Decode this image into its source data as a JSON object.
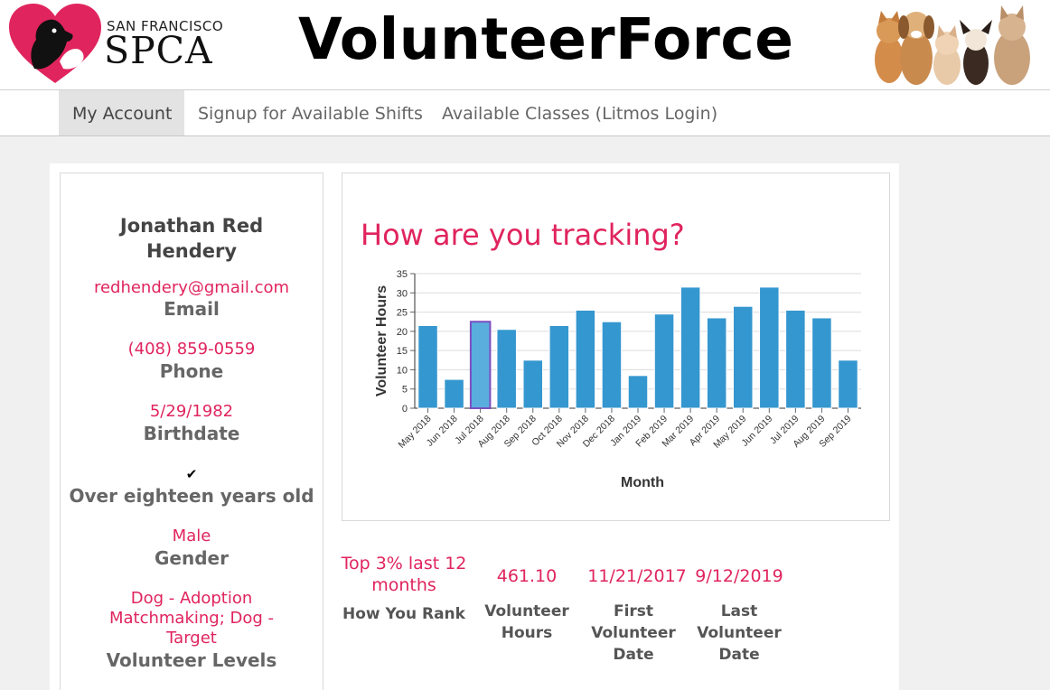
{
  "header": {
    "logo_small": "SAN FRANCISCO",
    "logo_big": "SPCA",
    "title": "VolunteerForce"
  },
  "nav": {
    "items": [
      {
        "label": "My Account",
        "active": true
      },
      {
        "label": "Signup for Available Shifts",
        "active": false
      },
      {
        "label": "Available Classes (Litmos Login)",
        "active": false
      }
    ]
  },
  "profile": {
    "name_line1": "Jonathan Red",
    "name_line2": "Hendery",
    "email": "redhendery@gmail.com",
    "email_label": "Email",
    "phone": "(408) 859-0559",
    "phone_label": "Phone",
    "birthdate": "5/29/1982",
    "birthdate_label": "Birthdate",
    "over18_check": "✔",
    "over18_label": "Over eighteen years old",
    "gender": "Male",
    "gender_label": "Gender",
    "levels_line1": "Dog - Adoption",
    "levels_line2": "Matchmaking; Dog -",
    "levels_line3": "Target",
    "levels_label": "Volunteer Levels"
  },
  "chart": {
    "heading": "How are you tracking?"
  },
  "chart_data": {
    "type": "bar",
    "categories": [
      "May 2018",
      "Jun 2018",
      "Jul 2018",
      "Aug 2018",
      "Sep 2018",
      "Oct 2018",
      "Nov 2018",
      "Dec 2018",
      "Jan 2019",
      "Feb 2019",
      "Mar 2019",
      "Apr 2019",
      "May 2019",
      "Jun 2019",
      "Jul 2019",
      "Aug 2019",
      "Sep 2019"
    ],
    "values": [
      21.5,
      7.5,
      22.5,
      20.5,
      12.5,
      21.5,
      25.5,
      22.5,
      8.5,
      24.5,
      31.5,
      23.5,
      26.5,
      31.5,
      25.5,
      23.5,
      12.5
    ],
    "highlighted_category": "Jul 2018",
    "xlabel": "Month",
    "ylabel": "Volunteer Hours",
    "ylim": [
      0,
      35
    ],
    "yticks": [
      0,
      5,
      10,
      15,
      20,
      25,
      30,
      35
    ],
    "grid": true,
    "bar_color": "#3597cf",
    "highlight_color": "#5aaedd",
    "highlight_border": "#7b4fc0"
  },
  "stats": [
    {
      "value_line1": "Top 3% last 12",
      "value_line2": "months",
      "label_line1": "How You Rank",
      "label_line2": "",
      "label_line3": ""
    },
    {
      "value_line1": "461.10",
      "value_line2": "",
      "label_line1": "Volunteer",
      "label_line2": "Hours",
      "label_line3": ""
    },
    {
      "value_line1": "11/21/2017",
      "value_line2": "",
      "label_line1": "First",
      "label_line2": "Volunteer",
      "label_line3": "Date"
    },
    {
      "value_line1": "9/12/2019",
      "value_line2": "",
      "label_line1": "Last",
      "label_line2": "Volunteer",
      "label_line3": "Date"
    }
  ],
  "colors": {
    "accent": "#e0245e",
    "text_gray": "#666666"
  }
}
